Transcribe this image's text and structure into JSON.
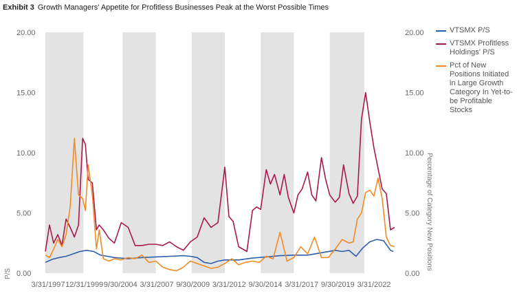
{
  "header": {
    "exhibit_label": "Exhibit 3",
    "title": "Growth Managers' Appetite for Profitless Businesses Peak at the Worst Possible Times"
  },
  "chart_data": {
    "type": "line",
    "title": "Growth Managers' Appetite for Profitless Businesses Peak at the Worst Possible Times",
    "ylabel": "P/S",
    "y2label": "Percentage of Category New Positions",
    "ylim": [
      0,
      20
    ],
    "y2lim": [
      0,
      20
    ],
    "yticks": [
      "20.00",
      "15.00",
      "10.00",
      "5.00",
      "0.00"
    ],
    "y2ticks": [
      "20.00",
      "15.00",
      "10.00",
      "5.00",
      "0.00"
    ],
    "xlim": [
      1997.0,
      2022.5
    ],
    "x_tick_labels": [
      "3/31/1997",
      "12/31/1999",
      "9/30/2004",
      "3/31/2007",
      "9/30/2009",
      "3/31/2012",
      "9/30/2014",
      "3/31/2017",
      "9/30/2019",
      "3/31/2022"
    ],
    "shaded_periods": [
      [
        1997.0,
        1999.75
      ],
      [
        2002.6,
        2005.0
      ],
      [
        2007.6,
        2010.0
      ],
      [
        2012.6,
        2015.0
      ],
      [
        2017.6,
        2020.1
      ]
    ],
    "legend_position": "right",
    "series": [
      {
        "name": "VTSMX P/S",
        "color": "#2a5daa",
        "x": [
          1997.0,
          1997.5,
          1998.0,
          1998.5,
          1999.0,
          1999.5,
          2000.0,
          2000.5,
          2001.0,
          2001.5,
          2002.0,
          2003.0,
          2004.0,
          2005.0,
          2006.0,
          2007.0,
          2007.5,
          2008.0,
          2008.5,
          2009.0,
          2009.5,
          2010.0,
          2011.0,
          2012.0,
          2013.0,
          2014.0,
          2015.0,
          2016.0,
          2017.0,
          2018.0,
          2018.5,
          2019.0,
          2019.5,
          2020.0,
          2020.5,
          2021.0,
          2021.5,
          2022.0,
          2022.2
        ],
        "y": [
          0.9,
          1.15,
          1.3,
          1.4,
          1.6,
          1.8,
          1.9,
          1.8,
          1.5,
          1.4,
          1.3,
          1.2,
          1.3,
          1.35,
          1.4,
          1.45,
          1.4,
          1.3,
          0.9,
          0.8,
          1.0,
          1.1,
          1.1,
          1.25,
          1.35,
          1.45,
          1.5,
          1.5,
          1.7,
          1.9,
          1.8,
          1.9,
          1.4,
          2.1,
          2.6,
          2.8,
          2.7,
          1.9,
          1.8
        ]
      },
      {
        "name": "VTSMX Profitless Holdings' P/S",
        "color": "#a8174e",
        "x": [
          1997.0,
          1997.3,
          1997.6,
          1997.9,
          1998.2,
          1998.5,
          1998.8,
          1999.1,
          1999.4,
          1999.7,
          1999.9,
          2000.1,
          2000.4,
          2000.7,
          2000.9,
          2001.2,
          2001.6,
          2002.0,
          2002.5,
          2003.0,
          2003.5,
          2004.0,
          2004.5,
          2005.0,
          2005.5,
          2006.0,
          2006.5,
          2007.0,
          2007.5,
          2008.0,
          2008.5,
          2009.0,
          2009.5,
          2010.0,
          2010.3,
          2010.6,
          2011.0,
          2011.3,
          2011.6,
          2012.0,
          2012.3,
          2012.6,
          2013.0,
          2013.3,
          2013.6,
          2014.0,
          2014.3,
          2014.6,
          2015.0,
          2015.3,
          2015.6,
          2016.0,
          2016.3,
          2016.6,
          2017.0,
          2017.3,
          2017.6,
          2018.0,
          2018.3,
          2018.6,
          2019.0,
          2019.3,
          2019.6,
          2019.9,
          2020.2,
          2020.5,
          2020.8,
          2021.1,
          2021.4,
          2021.7,
          2022.0,
          2022.3
        ],
        "y": [
          1.8,
          4.0,
          2.5,
          3.2,
          2.3,
          4.5,
          3.8,
          3.0,
          4.0,
          11.2,
          10.7,
          7.8,
          7.5,
          3.6,
          4.0,
          3.6,
          2.9,
          2.5,
          4.2,
          3.8,
          2.3,
          2.3,
          2.4,
          2.4,
          2.3,
          2.6,
          2.2,
          1.9,
          2.6,
          3.0,
          4.6,
          3.8,
          4.2,
          8.8,
          4.7,
          4.3,
          2.2,
          2.0,
          1.8,
          5.2,
          5.5,
          5.3,
          8.6,
          7.4,
          8.2,
          6.5,
          8.2,
          6.3,
          5.0,
          6.5,
          7.0,
          8.4,
          6.5,
          6.0,
          9.6,
          7.8,
          6.5,
          5.9,
          6.3,
          9.0,
          6.6,
          5.8,
          6.4,
          12.8,
          15.0,
          12.6,
          10.4,
          8.7,
          7.0,
          6.6,
          3.6,
          3.8
        ]
      },
      {
        "name": "Pct of New Positions Initiated in Large Growth Category In Yet-to-be Profitable Stocks",
        "color": "#f28a22",
        "x": [
          1997.0,
          1997.3,
          1997.6,
          1997.9,
          1998.2,
          1998.5,
          1998.8,
          1999.1,
          1999.4,
          1999.7,
          1999.9,
          2000.1,
          2000.4,
          2000.7,
          2000.9,
          2001.2,
          2001.6,
          2002.0,
          2002.5,
          2003.0,
          2003.5,
          2004.0,
          2004.5,
          2005.0,
          2005.5,
          2006.0,
          2006.5,
          2007.0,
          2007.5,
          2008.0,
          2008.5,
          2009.0,
          2009.5,
          2010.0,
          2010.5,
          2011.0,
          2011.5,
          2012.0,
          2012.5,
          2013.0,
          2013.5,
          2014.0,
          2014.5,
          2015.0,
          2015.5,
          2016.0,
          2016.5,
          2017.0,
          2017.5,
          2018.0,
          2018.5,
          2019.0,
          2019.3,
          2019.6,
          2019.9,
          2020.2,
          2020.5,
          2020.8,
          2021.1,
          2021.4,
          2021.7,
          2022.0,
          2022.3
        ],
        "y": [
          1.5,
          1.3,
          2.0,
          2.8,
          2.2,
          3.2,
          5.5,
          11.2,
          6.5,
          6.2,
          5.2,
          9.0,
          6.5,
          2.0,
          3.6,
          1.2,
          1.0,
          1.2,
          1.1,
          1.3,
          1.2,
          1.5,
          0.9,
          1.0,
          0.5,
          0.3,
          0.2,
          0.5,
          1.0,
          0.8,
          0.6,
          0.4,
          0.5,
          0.8,
          1.2,
          0.7,
          0.9,
          1.0,
          0.9,
          1.4,
          1.2,
          3.4,
          1.0,
          1.3,
          2.2,
          1.6,
          3.0,
          1.3,
          1.3,
          2.0,
          2.8,
          2.5,
          2.6,
          4.5,
          5.0,
          6.7,
          6.9,
          6.4,
          7.9,
          6.2,
          3.0,
          2.3,
          2.2
        ]
      }
    ]
  }
}
